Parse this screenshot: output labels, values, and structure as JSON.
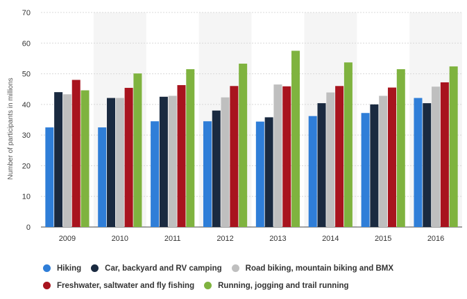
{
  "chart_data": {
    "type": "bar",
    "categories": [
      "2009",
      "2010",
      "2011",
      "2012",
      "2013",
      "2014",
      "2015",
      "2016"
    ],
    "ylabel": "Number of participants in millions",
    "ylim": [
      0,
      70
    ],
    "yticks": [
      0,
      10,
      20,
      30,
      40,
      50,
      60,
      70
    ],
    "grid": true,
    "legend_position": "bottom",
    "series": [
      {
        "name": "Hiking",
        "color": "#2f7ed8",
        "values": [
          32.5,
          32.5,
          34.5,
          34.5,
          34.4,
          36.2,
          37.2,
          42.1
        ]
      },
      {
        "name": "Car, backyard and RV camping",
        "color": "#1a2a40",
        "values": [
          44.0,
          42.1,
          42.5,
          38.0,
          35.8,
          40.4,
          40.0,
          40.4
        ]
      },
      {
        "name": "Road biking, mountain biking and BMX",
        "color": "#bfbfbf",
        "values": [
          43.3,
          42.1,
          42.8,
          42.3,
          46.5,
          43.9,
          42.8,
          45.8
        ]
      },
      {
        "name": "Freshwater, saltwater and fly fishing",
        "color": "#a8141e",
        "values": [
          48.0,
          45.4,
          46.3,
          46.0,
          45.9,
          46.0,
          45.5,
          47.2
        ]
      },
      {
        "name": "Running, jogging and trail running",
        "color": "#7fb33f",
        "values": [
          44.6,
          50.1,
          51.5,
          53.3,
          57.5,
          53.7,
          51.5,
          52.4
        ]
      }
    ]
  }
}
